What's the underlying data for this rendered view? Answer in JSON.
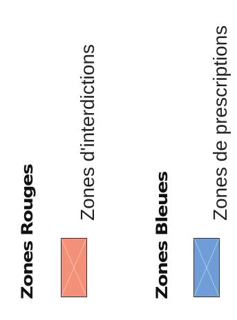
{
  "legend": {
    "items": [
      {
        "title": "Zones Rouges",
        "description": "Zones d'interdictions",
        "color": "#f59078"
      },
      {
        "title": "Zones Bleues",
        "description": "Zones de prescriptions",
        "color": "#6f9dd8"
      }
    ]
  }
}
